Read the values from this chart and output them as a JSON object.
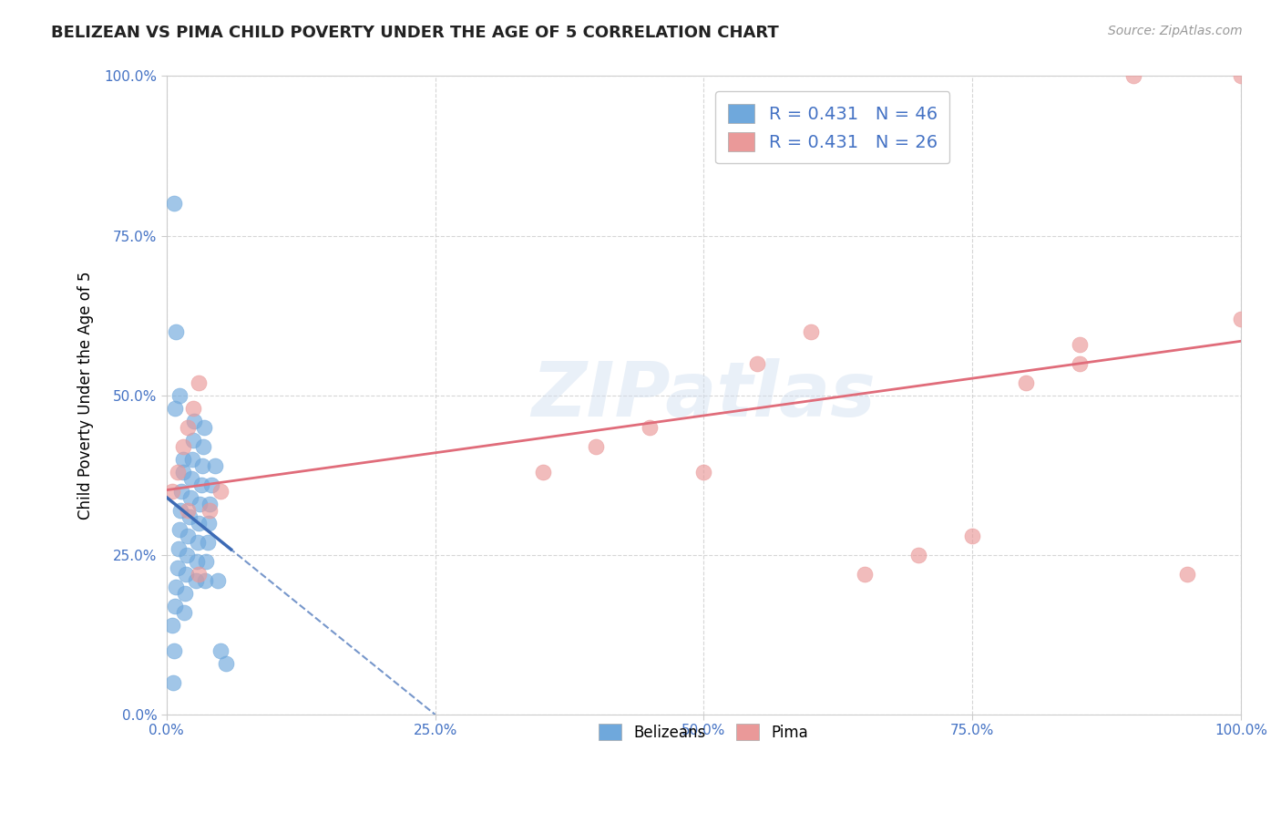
{
  "title": "BELIZEAN VS PIMA CHILD POVERTY UNDER THE AGE OF 5 CORRELATION CHART",
  "source": "Source: ZipAtlas.com",
  "ylabel": "Child Poverty Under the Age of 5",
  "xlim": [
    0.0,
    1.0
  ],
  "ylim": [
    0.0,
    1.0
  ],
  "xticks": [
    0.0,
    0.25,
    0.5,
    0.75,
    1.0
  ],
  "yticks": [
    0.0,
    0.25,
    0.5,
    0.75,
    1.0
  ],
  "xtick_labels": [
    "0.0%",
    "25.0%",
    "50.0%",
    "75.0%",
    "100.0%"
  ],
  "ytick_labels": [
    "0.0%",
    "25.0%",
    "50.0%",
    "75.0%",
    "100.0%"
  ],
  "belizean_color": "#6fa8dc",
  "pima_color": "#ea9999",
  "bel_line_color": "#3d6bb5",
  "pima_line_color": "#e06c7a",
  "axis_label_color": "#4472c4",
  "belizean_R": 0.431,
  "belizean_N": 46,
  "pima_R": 0.431,
  "pima_N": 26,
  "legend_label_1": "Belizeans",
  "legend_label_2": "Pima",
  "bel_x": [
    0.005,
    0.007,
    0.008,
    0.009,
    0.01,
    0.011,
    0.012,
    0.013,
    0.014,
    0.015,
    0.016,
    0.017,
    0.018,
    0.019,
    0.02,
    0.021,
    0.022,
    0.023,
    0.024,
    0.025,
    0.026,
    0.027,
    0.028,
    0.029,
    0.03,
    0.031,
    0.032,
    0.033,
    0.034,
    0.035,
    0.036,
    0.037,
    0.038,
    0.039,
    0.04,
    0.042,
    0.045,
    0.048,
    0.05,
    0.055,
    0.007,
    0.009,
    0.012,
    0.015,
    0.008,
    0.006
  ],
  "bel_y": [
    0.14,
    0.1,
    0.17,
    0.2,
    0.23,
    0.26,
    0.29,
    0.32,
    0.35,
    0.38,
    0.16,
    0.19,
    0.22,
    0.25,
    0.28,
    0.31,
    0.34,
    0.37,
    0.4,
    0.43,
    0.46,
    0.21,
    0.24,
    0.27,
    0.3,
    0.33,
    0.36,
    0.39,
    0.42,
    0.45,
    0.21,
    0.24,
    0.27,
    0.3,
    0.33,
    0.36,
    0.39,
    0.21,
    0.1,
    0.08,
    0.8,
    0.6,
    0.5,
    0.4,
    0.48,
    0.05
  ],
  "pima_x": [
    0.005,
    0.01,
    0.015,
    0.02,
    0.025,
    0.03,
    0.04,
    0.05,
    0.35,
    0.4,
    0.45,
    0.5,
    0.55,
    0.6,
    0.65,
    0.7,
    0.75,
    0.8,
    0.85,
    0.9,
    0.95,
    1.0,
    0.02,
    0.03,
    0.85,
    1.0
  ],
  "pima_y": [
    0.35,
    0.38,
    0.42,
    0.45,
    0.48,
    0.52,
    0.32,
    0.35,
    0.38,
    0.42,
    0.45,
    0.38,
    0.55,
    0.6,
    0.22,
    0.25,
    0.28,
    0.52,
    0.58,
    1.0,
    0.22,
    1.0,
    0.32,
    0.22,
    0.55,
    0.62
  ]
}
